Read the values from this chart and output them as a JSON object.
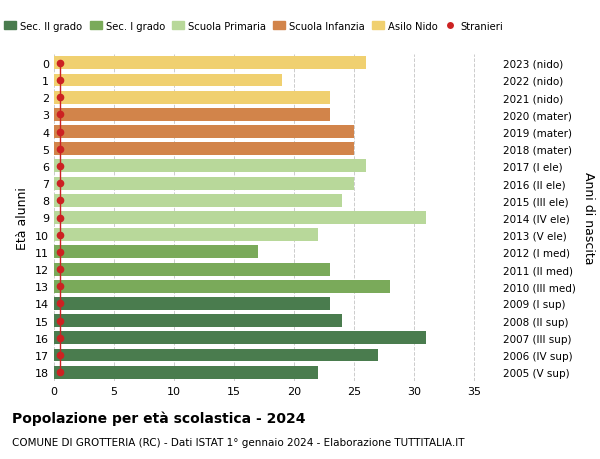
{
  "ages": [
    18,
    17,
    16,
    15,
    14,
    13,
    12,
    11,
    10,
    9,
    8,
    7,
    6,
    5,
    4,
    3,
    2,
    1,
    0
  ],
  "labels_right": [
    "2005 (V sup)",
    "2006 (IV sup)",
    "2007 (III sup)",
    "2008 (II sup)",
    "2009 (I sup)",
    "2010 (III med)",
    "2011 (II med)",
    "2012 (I med)",
    "2013 (V ele)",
    "2014 (IV ele)",
    "2015 (III ele)",
    "2016 (II ele)",
    "2017 (I ele)",
    "2018 (mater)",
    "2019 (mater)",
    "2020 (mater)",
    "2021 (nido)",
    "2022 (nido)",
    "2023 (nido)"
  ],
  "bar_values": [
    22,
    27,
    31,
    24,
    23,
    28,
    23,
    17,
    22,
    31,
    24,
    25,
    26,
    25,
    25,
    23,
    23,
    19,
    26
  ],
  "bar_colors": [
    "#4a7c4e",
    "#4a7c4e",
    "#4a7c4e",
    "#4a7c4e",
    "#4a7c4e",
    "#7aaa5a",
    "#7aaa5a",
    "#7aaa5a",
    "#b8d89a",
    "#b8d89a",
    "#b8d89a",
    "#b8d89a",
    "#b8d89a",
    "#d2844a",
    "#d2844a",
    "#d2844a",
    "#f0d070",
    "#f0d070",
    "#f0d070"
  ],
  "stranieri_dots": [
    0,
    1,
    1,
    1,
    1,
    1,
    1,
    1,
    0,
    1,
    0,
    0,
    0,
    1,
    1,
    1,
    1,
    0,
    1
  ],
  "legend_labels": [
    "Sec. II grado",
    "Sec. I grado",
    "Scuola Primaria",
    "Scuola Infanzia",
    "Asilo Nido",
    "Stranieri"
  ],
  "legend_colors": [
    "#4a7c4e",
    "#7aaa5a",
    "#b8d89a",
    "#d2844a",
    "#f0d070",
    "#cc2222"
  ],
  "ylabel": "Età alunni",
  "ylabel_right": "Anni di nascita",
  "xticks": [
    0,
    5,
    10,
    15,
    20,
    25,
    30,
    35
  ],
  "xlim_max": 37,
  "title_main": "Popolazione per età scolastica - 2024",
  "title_sub": "COMUNE DI GROTTERIA (RC) - Dati ISTAT 1° gennaio 2024 - Elaborazione TUTTITALIA.IT",
  "bg_color": "#ffffff",
  "grid_color": "#cccccc"
}
